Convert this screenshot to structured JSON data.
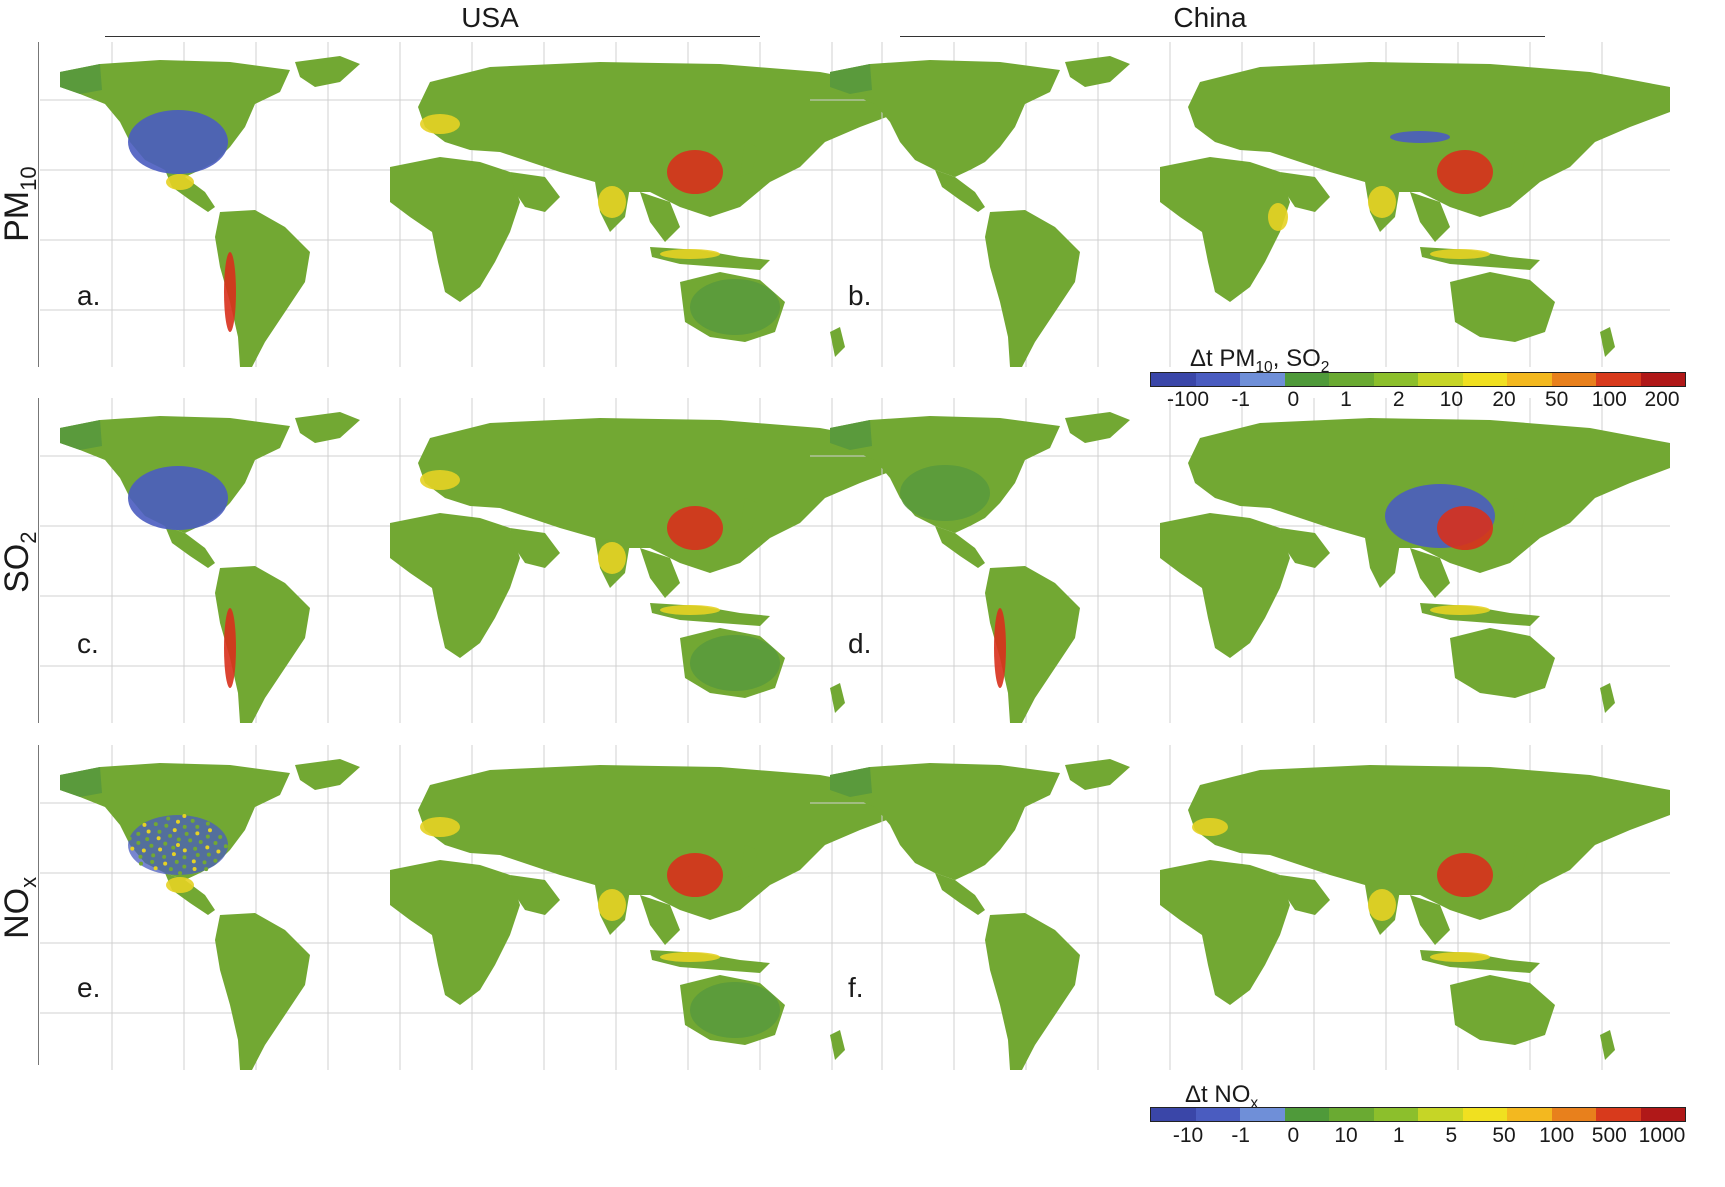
{
  "columns": [
    {
      "id": "usa",
      "label": "USA"
    },
    {
      "id": "china",
      "label": "China"
    }
  ],
  "rows": [
    {
      "id": "pm10",
      "label_main": "PM",
      "label_sub": "10"
    },
    {
      "id": "so2",
      "label_main": "SO",
      "label_sub": "2"
    },
    {
      "id": "nox",
      "label_main": "NO",
      "label_sub": "x"
    }
  ],
  "panels": [
    {
      "label": "a.",
      "row": "pm10",
      "column": "usa",
      "hotspots": [
        "usa-blue",
        "china-red",
        "india",
        "europe",
        "andes",
        "mexico",
        "indonesia",
        "australia-dark"
      ]
    },
    {
      "label": "b.",
      "row": "pm10",
      "column": "china",
      "hotspots": [
        "china-red",
        "india",
        "indonesia",
        "east-africa",
        "china-blue-dots"
      ]
    },
    {
      "label": "c.",
      "row": "so2",
      "column": "usa",
      "hotspots": [
        "usa-blue",
        "china-red",
        "india",
        "europe",
        "andes",
        "indonesia",
        "australia-dark"
      ]
    },
    {
      "label": "d.",
      "row": "so2",
      "column": "china",
      "hotspots": [
        "china-blue",
        "china-red",
        "andes",
        "indonesia",
        "usa-dark"
      ]
    },
    {
      "label": "e.",
      "row": "nox",
      "column": "usa",
      "hotspots": [
        "usa-mixed",
        "china-red",
        "india",
        "europe",
        "mexico",
        "indonesia",
        "australia-dark"
      ]
    },
    {
      "label": "f.",
      "row": "nox",
      "column": "china",
      "hotspots": [
        "china-red",
        "india",
        "indonesia",
        "europe-light"
      ]
    }
  ],
  "legend_pm_so2": {
    "title_prefix": "Δt PM",
    "title_sub1": "10",
    "title_middle": ", SO",
    "title_sub2": "2",
    "ticks": [
      "-100",
      "-1",
      "0",
      "1",
      "2",
      "10",
      "20",
      "50",
      "100",
      "200"
    ],
    "colors": [
      "#3a46a8",
      "#4a5cc0",
      "#6f8fd8",
      "#4f9a3a",
      "#6aaa32",
      "#8cbf2c",
      "#c6d526",
      "#f0e020",
      "#f3b81f",
      "#e8801c",
      "#d83a1c",
      "#b01818"
    ]
  },
  "legend_nox": {
    "title_prefix": "Δt NO",
    "title_sub": "x",
    "ticks": [
      "-10",
      "-1",
      "0",
      "10",
      "1",
      "5",
      "50",
      "100",
      "500",
      "1000"
    ],
    "colors": [
      "#3a46a8",
      "#4a5cc0",
      "#6f8fd8",
      "#4f9a3a",
      "#6aaa32",
      "#8cbf2c",
      "#c6d526",
      "#f0e020",
      "#f3b81f",
      "#e8801c",
      "#d83a1c",
      "#b01818"
    ]
  },
  "colors": {
    "land": "#72a833",
    "land_dark": "#5a9a3c",
    "blue": "#4a5cc0",
    "yellow": "#e6d224",
    "red": "#d8301c",
    "grid": "#d0d0d0"
  }
}
